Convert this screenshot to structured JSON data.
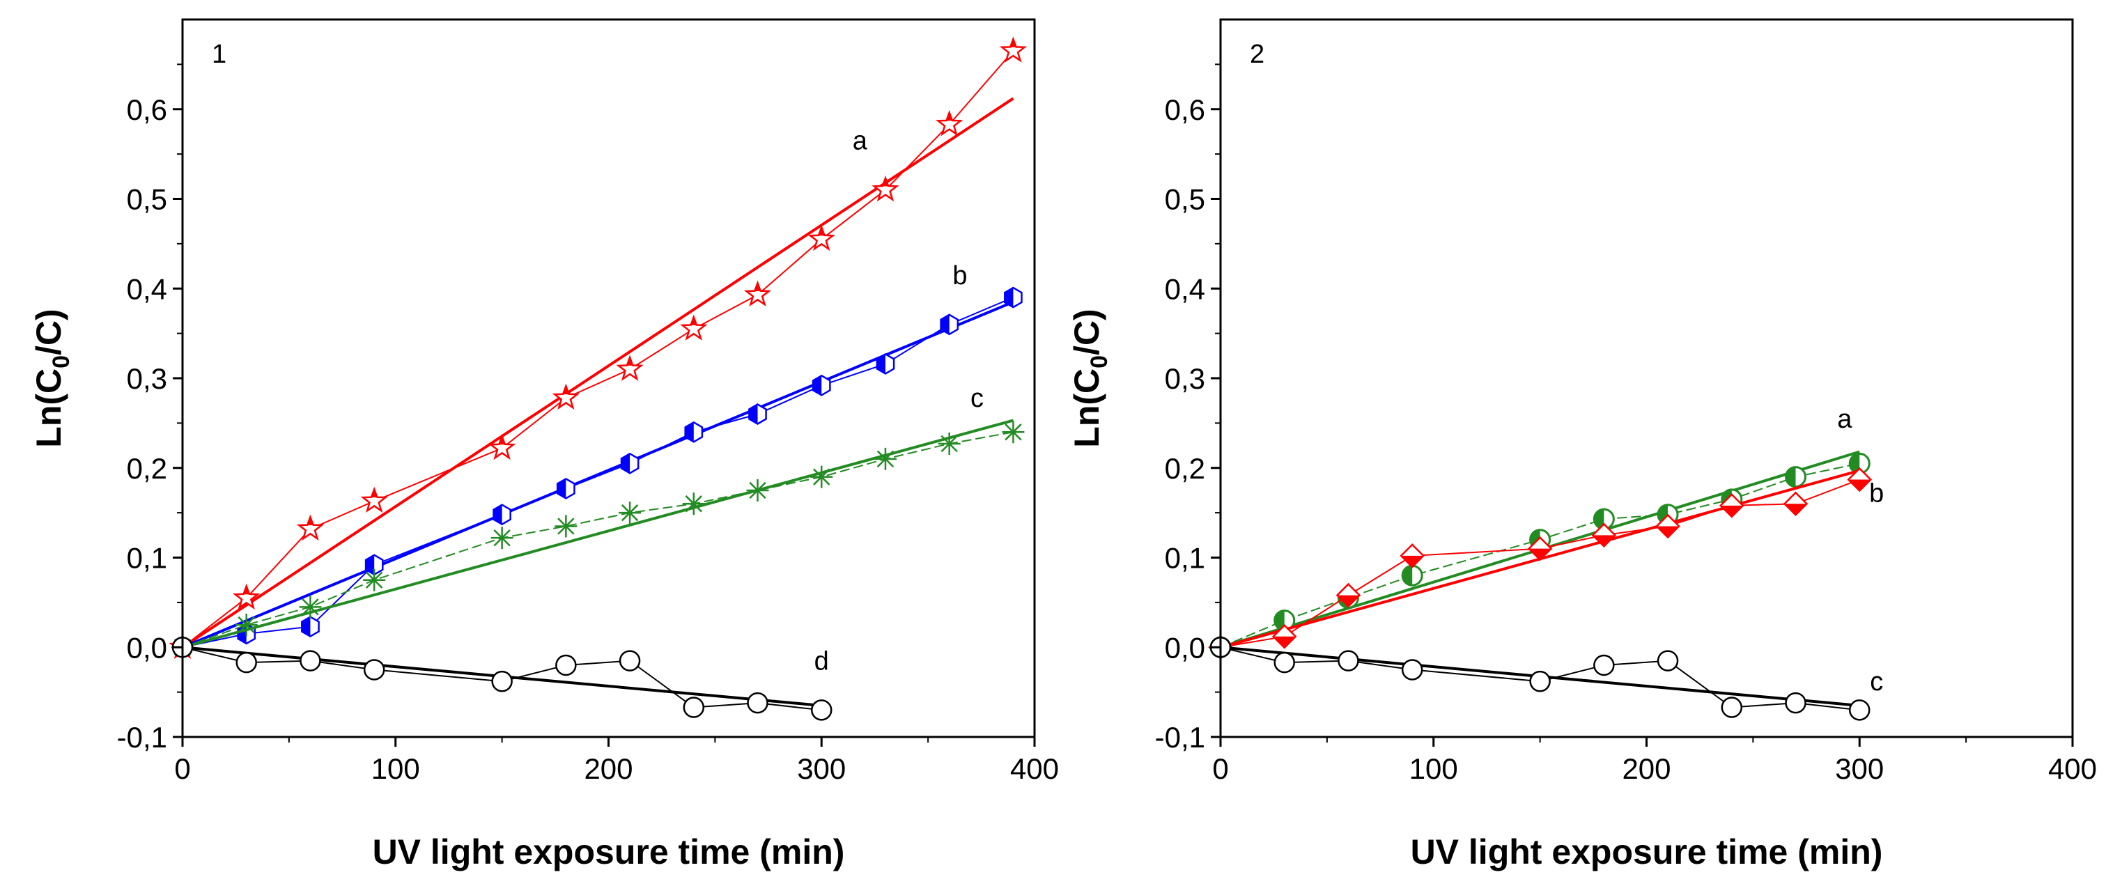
{
  "chart_data": [
    {
      "type": "scatter",
      "panel_label": "1",
      "xlabel": "UV light exposure time (min)",
      "ylabel_main": "Ln(C",
      "ylabel_sub": "0",
      "ylabel_tail": "/C)",
      "xlim": [
        0,
        400
      ],
      "ylim": [
        -0.1,
        0.7
      ],
      "xticks": [
        0,
        100,
        200,
        300,
        400
      ],
      "xtick_labels": [
        "0",
        "100",
        "200",
        "300",
        "400"
      ],
      "yticks": [
        -0.1,
        0.0,
        0.1,
        0.2,
        0.3,
        0.4,
        0.5,
        0.6
      ],
      "ytick_labels": [
        "-0,1",
        "0,0",
        "0,1",
        "0,2",
        "0,3",
        "0,4",
        "0,5",
        "0,6"
      ],
      "series": [
        {
          "name": "a",
          "color": "#ff0000",
          "marker": "star",
          "dashed": false,
          "x": [
            0,
            30,
            60,
            90,
            150,
            180,
            210,
            240,
            270,
            300,
            330,
            360,
            390
          ],
          "y": [
            0.0,
            0.055,
            0.132,
            0.163,
            0.222,
            0.278,
            0.31,
            0.355,
            0.393,
            0.455,
            0.51,
            0.583,
            0.665
          ],
          "fit": [
            [
              0,
              0.0
            ],
            [
              390,
              0.612
            ]
          ],
          "label_at": [
            318,
            0.555
          ]
        },
        {
          "name": "b",
          "color": "#0000ff",
          "marker": "half-hexagon",
          "dashed": false,
          "x": [
            0,
            30,
            60,
            90,
            150,
            180,
            210,
            240,
            270,
            300,
            330,
            360,
            390
          ],
          "y": [
            0.0,
            0.015,
            0.023,
            0.092,
            0.148,
            0.177,
            0.205,
            0.24,
            0.26,
            0.292,
            0.316,
            0.36,
            0.39
          ],
          "fit": [
            [
              0,
              0.0
            ],
            [
              390,
              0.385
            ]
          ],
          "label_at": [
            365,
            0.405
          ]
        },
        {
          "name": "c",
          "color": "#228b22",
          "marker": "asterisk",
          "dashed": true,
          "x": [
            0,
            30,
            60,
            90,
            150,
            180,
            210,
            240,
            270,
            300,
            330,
            360,
            390
          ],
          "y": [
            0.0,
            0.025,
            0.045,
            0.075,
            0.122,
            0.135,
            0.15,
            0.16,
            0.175,
            0.19,
            0.21,
            0.227,
            0.24
          ],
          "fit": [
            [
              0,
              0.0
            ],
            [
              390,
              0.253
            ]
          ],
          "label_at": [
            373,
            0.268
          ]
        },
        {
          "name": "d",
          "color": "#000000",
          "marker": "open-circle",
          "dashed": false,
          "x": [
            0,
            30,
            60,
            90,
            150,
            180,
            210,
            240,
            270,
            300
          ],
          "y": [
            0.0,
            -0.017,
            -0.015,
            -0.025,
            -0.038,
            -0.02,
            -0.015,
            -0.067,
            -0.062,
            -0.07
          ],
          "fit": [
            [
              0,
              0.0
            ],
            [
              300,
              -0.065
            ]
          ],
          "label_at": [
            300,
            -0.025
          ]
        }
      ]
    },
    {
      "type": "scatter",
      "panel_label": "2",
      "xlabel": "UV light exposure time (min)",
      "ylabel_main": "Ln(C",
      "ylabel_sub": "0",
      "ylabel_tail": "/C)",
      "xlim": [
        0,
        400
      ],
      "ylim": [
        -0.1,
        0.7
      ],
      "xticks": [
        0,
        100,
        200,
        300,
        400
      ],
      "xtick_labels": [
        "0",
        "100",
        "200",
        "300",
        "400"
      ],
      "yticks": [
        -0.1,
        0.0,
        0.1,
        0.2,
        0.3,
        0.4,
        0.5,
        0.6
      ],
      "ytick_labels": [
        "-0,1",
        "0,0",
        "0,1",
        "0,2",
        "0,3",
        "0,4",
        "0,5",
        "0,6"
      ],
      "series": [
        {
          "name": "a",
          "color": "#228b22",
          "marker": "half-circle",
          "dashed": true,
          "x": [
            0,
            30,
            60,
            90,
            150,
            180,
            210,
            240,
            270,
            300
          ],
          "y": [
            0.0,
            0.03,
            0.055,
            0.08,
            0.12,
            0.143,
            0.148,
            0.165,
            0.19,
            0.205
          ],
          "fit": [
            [
              0,
              0.0
            ],
            [
              300,
              0.218
            ]
          ],
          "label_at": [
            293,
            0.245
          ]
        },
        {
          "name": "b",
          "color": "#ff0000",
          "marker": "half-diamond",
          "dashed": false,
          "x": [
            0,
            30,
            60,
            90,
            150,
            180,
            210,
            240,
            270,
            300
          ],
          "y": [
            0.0,
            0.012,
            0.058,
            0.102,
            0.11,
            0.125,
            0.135,
            0.158,
            0.16,
            0.187
          ],
          "fit": [
            [
              0,
              0.0
            ],
            [
              300,
              0.197
            ]
          ],
          "label_at": [
            308,
            0.162
          ]
        },
        {
          "name": "c",
          "color": "#000000",
          "marker": "open-circle",
          "dashed": false,
          "x": [
            0,
            30,
            60,
            90,
            150,
            180,
            210,
            240,
            270,
            300
          ],
          "y": [
            0.0,
            -0.017,
            -0.015,
            -0.025,
            -0.038,
            -0.02,
            -0.015,
            -0.067,
            -0.062,
            -0.07
          ],
          "fit": [
            [
              0,
              0.0
            ],
            [
              300,
              -0.065
            ]
          ],
          "label_at": [
            308,
            -0.048
          ]
        }
      ]
    }
  ]
}
